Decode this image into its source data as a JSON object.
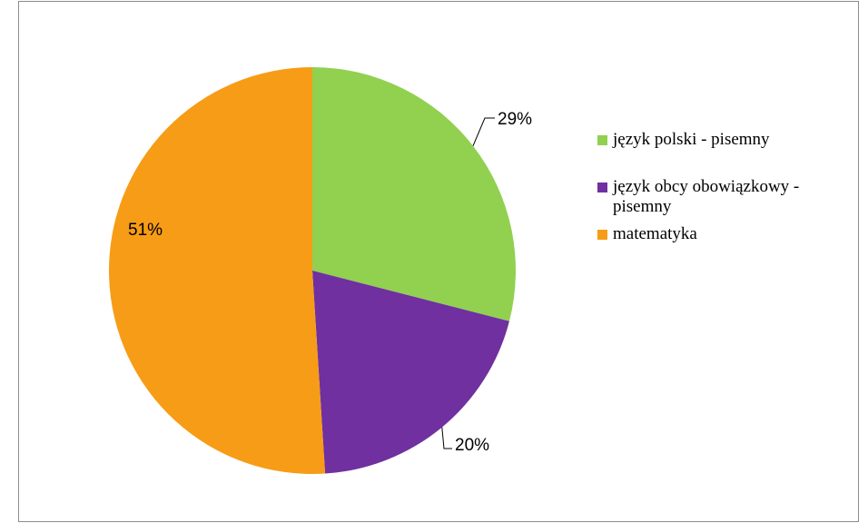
{
  "chart_data": {
    "type": "pie",
    "start_angle_deg": 0,
    "direction": "clockwise",
    "legend_position": "right",
    "categories": [
      "język polski - pisemny",
      "język obcy obowiązkowy - pisemny",
      "matematyka"
    ],
    "values": [
      29,
      20,
      51
    ],
    "value_labels": [
      "29%",
      "20%",
      "51%"
    ],
    "colors": [
      "#92d050",
      "#7030a0",
      "#f79c16"
    ],
    "legend": [
      {
        "line1": "język polski - pisemny",
        "line2": ""
      },
      {
        "line1": "język obcy obowiązkowy -",
        "line2": "pisemny"
      },
      {
        "line1": "matematyka",
        "line2": ""
      }
    ]
  }
}
